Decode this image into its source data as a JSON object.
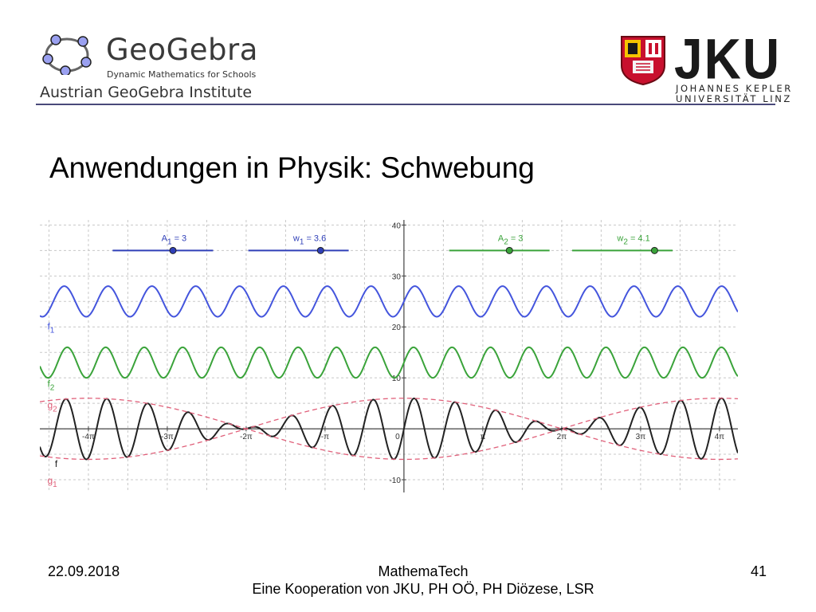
{
  "header": {
    "geogebra": {
      "name": "GeoGebra",
      "tagline": "Dynamic Mathematics for Schools",
      "institute": "Austrian GeoGebra Institute"
    },
    "jku": {
      "wordmark": "JKU",
      "line1": "JOHANNES KEPLER",
      "line2": "UNIVERSITÄT LINZ"
    }
  },
  "slide": {
    "title": "Anwendungen in Physik:  Schwebung"
  },
  "chart_data": {
    "type": "line",
    "xlim": [
      -14.5,
      13.3
    ],
    "ylim": [
      -12.5,
      41
    ],
    "grid": true,
    "x_ticks": [
      {
        "value": -12.566,
        "label": "-4π"
      },
      {
        "value": -9.425,
        "label": "-3π"
      },
      {
        "value": -6.283,
        "label": "-2π"
      },
      {
        "value": -3.1416,
        "label": "-π"
      },
      {
        "value": 0,
        "label": "0"
      },
      {
        "value": 3.1416,
        "label": "π"
      },
      {
        "value": 6.283,
        "label": "2π"
      },
      {
        "value": 9.425,
        "label": "3π"
      },
      {
        "value": 12.566,
        "label": "4π"
      }
    ],
    "y_ticks": [
      {
        "value": 40,
        "label": "40"
      },
      {
        "value": 30,
        "label": "30"
      },
      {
        "value": 20,
        "label": "20"
      },
      {
        "value": 10,
        "label": "10"
      },
      {
        "value": -10,
        "label": "-10"
      }
    ],
    "sliders": [
      {
        "label": "A",
        "sub": "1",
        "text": " = 3",
        "value": 3,
        "min": 0,
        "max": 5,
        "y": 35,
        "x_start": -11.6,
        "x_end": -7.6,
        "color": "#2f3fb8"
      },
      {
        "label": "w",
        "sub": "1",
        "text": " = 3.6",
        "value": 3.6,
        "min": 0,
        "max": 5,
        "y": 35,
        "x_start": -6.2,
        "x_end": -2.2,
        "color": "#2f3fb8"
      },
      {
        "label": "A",
        "sub": "2",
        "text": " = 3",
        "value": 3,
        "min": 0,
        "max": 5,
        "y": 35,
        "x_start": 1.8,
        "x_end": 5.8,
        "color": "#3aa33a"
      },
      {
        "label": "w",
        "sub": "2",
        "text": " = 4.1",
        "value": 4.1,
        "min": 0,
        "max": 5,
        "y": 35,
        "x_start": 6.7,
        "x_end": 10.7,
        "color": "#3aa33a"
      }
    ],
    "series": [
      {
        "name": "f",
        "sub": "1",
        "formula": "A1*sin(w1*x)+25",
        "color": "#4455dd",
        "label_x": -14.2,
        "label_y": 19.5
      },
      {
        "name": "f",
        "sub": "2",
        "formula": "A2*sin(w2*x)+13",
        "color": "#3aa33a",
        "label_x": -14.2,
        "label_y": 8.2
      },
      {
        "name": "f",
        "sub": "",
        "formula": "f1(x)+f2(x)-38",
        "color": "#222222",
        "label_x": -13.9,
        "label_y": -7.5
      },
      {
        "name": "g",
        "sub": "2",
        "formula": "2A*cos((w2-w1)/2*x)",
        "color": "#e0607a",
        "dashed": true,
        "label_x": -14.2,
        "label_y": 4.0
      },
      {
        "name": "g",
        "sub": "1",
        "formula": "-2A*cos((w2-w1)/2*x)",
        "color": "#e0607a",
        "dashed": true,
        "label_x": -14.2,
        "label_y": -10.8
      }
    ]
  },
  "footer": {
    "date": "22.09.2018",
    "center_line1": "MathemaTech",
    "center_line2": "Eine Kooperation von JKU, PH OÖ, PH Diözese, LSR",
    "page": "41"
  }
}
